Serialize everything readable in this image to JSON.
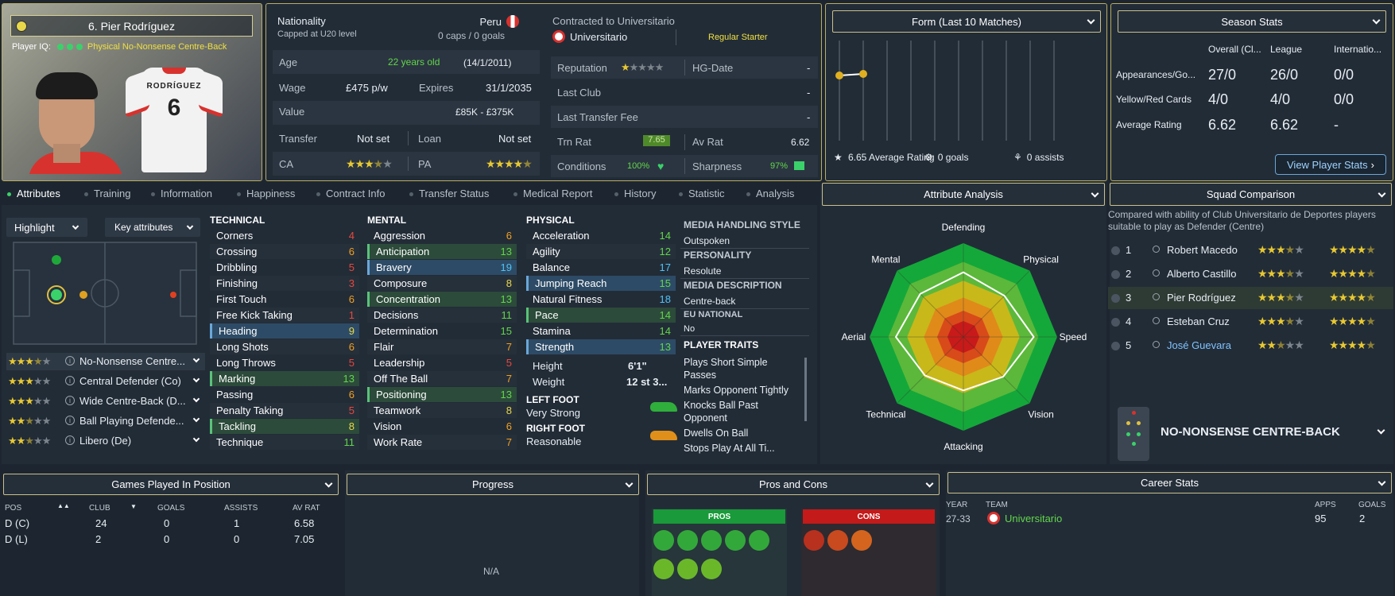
{
  "profile": {
    "name": "6. Pier Rodríguez",
    "player_iq_label": "Player IQ:",
    "player_iq_role": "Physical No-Nonsense Centre-Back",
    "shirt_name": "RODRÍGUEZ",
    "shirt_number": "6"
  },
  "info": {
    "nationality_label": "Nationality",
    "nationality_value": "Peru",
    "capped": "Capped at U20 level",
    "caps_goals": "0 caps / 0 goals",
    "age_label": "Age",
    "age_value": "22 years old",
    "dob": "(14/1/2011)",
    "wage_label": "Wage",
    "wage_value": "£475 p/w",
    "expires_label": "Expires",
    "expires_value": "31/1/2035",
    "value_label": "Value",
    "value_value": "£85K - £375K",
    "transfer_label": "Transfer",
    "transfer_value": "Not set",
    "loan_label": "Loan",
    "loan_value": "Not set",
    "ca_label": "CA",
    "pa_label": "PA",
    "contracted_label": "Contracted to Universitario",
    "club": "Universitario",
    "squad_status": "Regular Starter",
    "reputation_label": "Reputation",
    "hg_label": "HG-Date",
    "hg_value": "-",
    "last_club_label": "Last Club",
    "last_club_value": "-",
    "last_fee_label": "Last Transfer Fee",
    "last_fee_value": "-",
    "trn_rat_label": "Trn Rat",
    "trn_rat_value": "7.65",
    "av_rat_label": "Av Rat",
    "av_rat_value": "6.62",
    "conditions_label": "Conditions",
    "conditions_value": "100%",
    "sharpness_label": "Sharpness",
    "sharpness_value": "97%"
  },
  "form": {
    "title": "Form (Last 10 Matches)",
    "avg_rating": "6.65 Average Rating",
    "goals": "0 goals",
    "assists": "0 assists",
    "points": [
      6.3,
      6.4
    ]
  },
  "season": {
    "title": "Season Stats",
    "headers": [
      "Overall (Cl...",
      "League",
      "Internatio..."
    ],
    "rows": [
      {
        "label": "Appearances/Go...",
        "values": [
          "27/0",
          "26/0",
          "0/0"
        ]
      },
      {
        "label": "Yellow/Red Cards",
        "values": [
          "4/0",
          "4/0",
          "0/0"
        ]
      },
      {
        "label": "Average Rating",
        "values": [
          "6.62",
          "6.62",
          "-"
        ]
      }
    ],
    "view_button": "View Player Stats"
  },
  "tabs": [
    "Attributes",
    "Training",
    "Information",
    "Happiness",
    "Contract Info",
    "Transfer Status",
    "Medical Report",
    "History",
    "Statistic",
    "Analysis"
  ],
  "left": {
    "highlight": "Highlight",
    "key_attributes": "Key attributes",
    "roles": [
      {
        "name": "No-Nonsense Centre...",
        "stars": "3.5"
      },
      {
        "name": "Central Defender (Co)",
        "stars": "3"
      },
      {
        "name": "Wide Centre-Back (D...",
        "stars": "3"
      },
      {
        "name": "Ball Playing Defende...",
        "stars": "2.5"
      },
      {
        "name": "Libero (De)",
        "stars": "2.5"
      }
    ]
  },
  "technical": {
    "title": "TECHNICAL",
    "items": [
      {
        "name": "Corners",
        "value": "4"
      },
      {
        "name": "Crossing",
        "value": "6"
      },
      {
        "name": "Dribbling",
        "value": "5"
      },
      {
        "name": "Finishing",
        "value": "3"
      },
      {
        "name": "First Touch",
        "value": "6"
      },
      {
        "name": "Free Kick Taking",
        "value": "1"
      },
      {
        "name": "Heading",
        "value": "9"
      },
      {
        "name": "Long Shots",
        "value": "6"
      },
      {
        "name": "Long Throws",
        "value": "5"
      },
      {
        "name": "Marking",
        "value": "13"
      },
      {
        "name": "Passing",
        "value": "6"
      },
      {
        "name": "Penalty Taking",
        "value": "5"
      },
      {
        "name": "Tackling",
        "value": "8"
      },
      {
        "name": "Technique",
        "value": "11"
      }
    ]
  },
  "mental": {
    "title": "MENTAL",
    "items": [
      {
        "name": "Aggression",
        "value": "6"
      },
      {
        "name": "Anticipation",
        "value": "13"
      },
      {
        "name": "Bravery",
        "value": "19"
      },
      {
        "name": "Composure",
        "value": "8"
      },
      {
        "name": "Concentration",
        "value": "13"
      },
      {
        "name": "Decisions",
        "value": "11"
      },
      {
        "name": "Determination",
        "value": "15"
      },
      {
        "name": "Flair",
        "value": "7"
      },
      {
        "name": "Leadership",
        "value": "5"
      },
      {
        "name": "Off The Ball",
        "value": "7"
      },
      {
        "name": "Positioning",
        "value": "13"
      },
      {
        "name": "Teamwork",
        "value": "8"
      },
      {
        "name": "Vision",
        "value": "6"
      },
      {
        "name": "Work Rate",
        "value": "7"
      }
    ]
  },
  "physical": {
    "title": "PHYSICAL",
    "items": [
      {
        "name": "Acceleration",
        "value": "14"
      },
      {
        "name": "Agility",
        "value": "12"
      },
      {
        "name": "Balance",
        "value": "17"
      },
      {
        "name": "Jumping Reach",
        "value": "15"
      },
      {
        "name": "Natural Fitness",
        "value": "18"
      },
      {
        "name": "Pace",
        "value": "14"
      },
      {
        "name": "Stamina",
        "value": "14"
      },
      {
        "name": "Strength",
        "value": "13"
      }
    ],
    "height_label": "Height",
    "height_value": "6'1\"",
    "weight_label": "Weight",
    "weight_value": "12 st 3...",
    "left_foot_label": "LEFT FOOT",
    "left_foot_value": "Very Strong",
    "right_foot_label": "RIGHT FOOT",
    "right_foot_value": "Reasonable"
  },
  "media": {
    "handling_title": "MEDIA HANDLING STYLE",
    "handling_value": "Outspoken",
    "personality_title": "PERSONALITY",
    "personality_value": "Resolute",
    "description_title": "MEDIA DESCRIPTION",
    "description_value": "Centre-back",
    "eu_title": "EU NATIONAL",
    "eu_value": "No",
    "traits_title": "PLAYER TRAITS",
    "traits": [
      "Plays Short Simple Passes",
      "Marks Opponent Tightly",
      "Knocks Ball Past Opponent",
      "Dwells On Ball",
      "Stops Play At All Ti..."
    ]
  },
  "analysis": {
    "title": "Attribute Analysis",
    "labels": [
      "Defending",
      "Physical",
      "Speed",
      "Vision",
      "Attacking",
      "Technical",
      "Aerial",
      "Mental"
    ]
  },
  "squad": {
    "title": "Squad Comparison",
    "subtitle": "Compared with ability of Club Universitario de Deportes players suitable to play as Defender (Centre)",
    "players": [
      {
        "rank": "1",
        "name": "Robert Macedo"
      },
      {
        "rank": "2",
        "name": "Alberto Castillo"
      },
      {
        "rank": "3",
        "name": "Pier Rodríguez"
      },
      {
        "rank": "4",
        "name": "Esteban Cruz"
      },
      {
        "rank": "5",
        "name": "José Guevara"
      }
    ],
    "role": "NO-NONSENSE CENTRE-BACK"
  },
  "games": {
    "title": "Games Played In Position",
    "headers": [
      "POS",
      "CLUB",
      "GOALS",
      "ASSISTS",
      "AV RAT"
    ],
    "rows": [
      [
        "D (C)",
        "24",
        "0",
        "1",
        "6.58"
      ],
      [
        "D (L)",
        "2",
        "0",
        "0",
        "7.05"
      ]
    ]
  },
  "progress": {
    "title": "Progress",
    "empty": "N/A"
  },
  "proscons": {
    "title": "Pros and Cons",
    "pros": "PROS",
    "cons": "CONS"
  },
  "career": {
    "title": "Career Stats",
    "headers": [
      "YEAR",
      "TEAM",
      "APPS",
      "GOALS"
    ],
    "rows": [
      [
        "27-33",
        "Universitario",
        "95",
        "2"
      ]
    ]
  },
  "colors": {
    "accent": "#b9ad62",
    "green": "#3bd16a",
    "panel": "#222c37"
  }
}
